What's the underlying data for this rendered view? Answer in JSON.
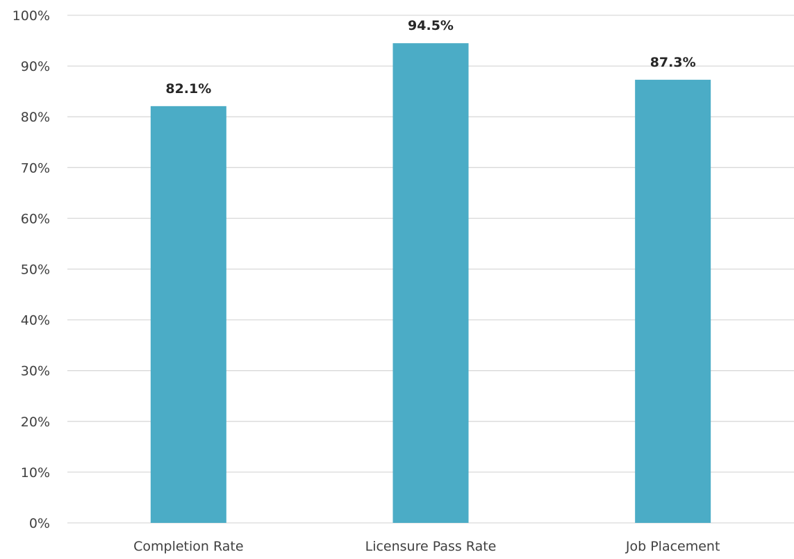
{
  "chart_data": {
    "type": "bar",
    "title": "",
    "xlabel": "",
    "ylabel": "",
    "categories": [
      "Completion Rate",
      "Licensure Pass Rate",
      "Job Placement"
    ],
    "values": [
      82.1,
      94.5,
      87.3
    ],
    "data_labels": [
      "82.1%",
      "94.5%",
      "87.3%"
    ],
    "ylim": [
      0,
      100
    ],
    "yticks": [
      0,
      10,
      20,
      30,
      40,
      50,
      60,
      70,
      80,
      90,
      100
    ],
    "ytick_labels": [
      "0%",
      "10%",
      "20%",
      "30%",
      "40%",
      "50%",
      "60%",
      "70%",
      "80%",
      "90%",
      "100%"
    ],
    "grid": true,
    "legend": "none",
    "bar_color": "#4BACC6"
  }
}
